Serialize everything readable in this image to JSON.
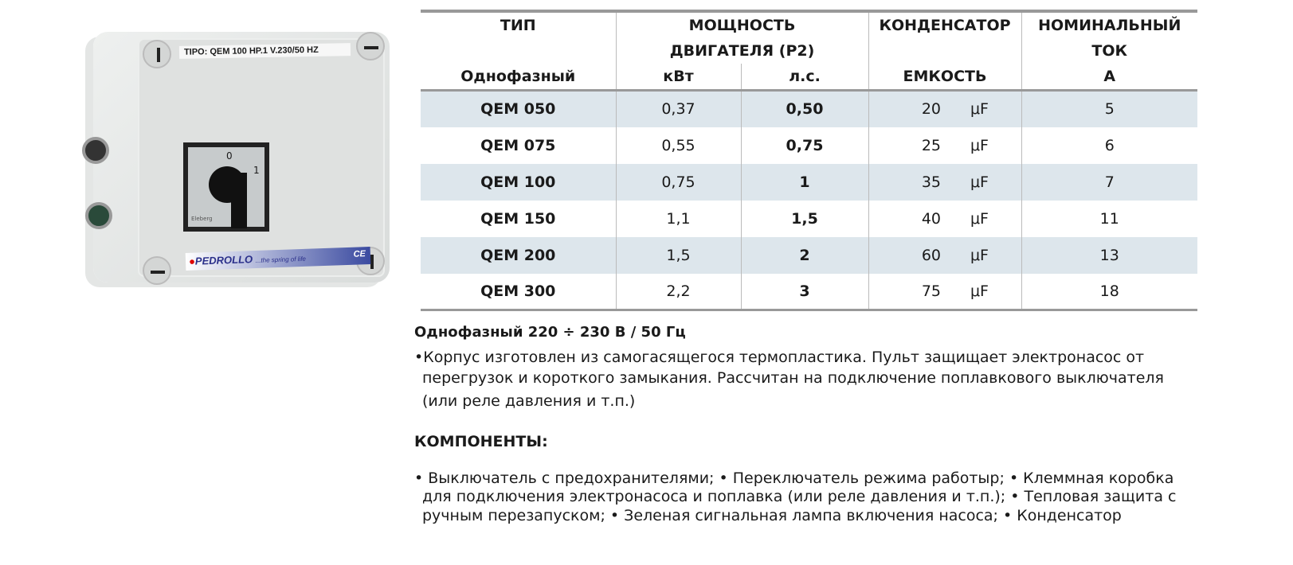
{
  "product_image": {
    "label": "TIPO: QEM 100  HP.1  V.230/50 HZ",
    "brand": "PEDROLLO",
    "slogan": "...the spring of life",
    "ce": "CE",
    "switch_positions": [
      "0",
      "1"
    ],
    "switch_brand": "Eleberg"
  },
  "table": {
    "headers": {
      "type": "ТИП",
      "type_sub": "Однофазный",
      "power": "МОЩНОСТЬ",
      "power2": "ДВИГАТЕЛЯ (P2)",
      "kw": "кВт",
      "hp": "л.с.",
      "cap": "КОНДЕНСАТОР",
      "cap_sub": "ЕМКОСТЬ",
      "cur": "НОМИНАЛЬНЫЙ",
      "cur2": "ТОК",
      "cur_unit": "А"
    },
    "rows": [
      {
        "type": "QEM 050",
        "kw": "0,37",
        "hp": "0,50",
        "cap": "20",
        "unit": "μF",
        "cur": "5"
      },
      {
        "type": "QEM 075",
        "kw": "0,55",
        "hp": "0,75",
        "cap": "25",
        "unit": "μF",
        "cur": "6"
      },
      {
        "type": "QEM 100",
        "kw": "0,75",
        "hp": "1",
        "cap": "35",
        "unit": "μF",
        "cur": "7"
      },
      {
        "type": "QEM 150",
        "kw": "1,1",
        "hp": "1,5",
        "cap": "40",
        "unit": "μF",
        "cur": "11"
      },
      {
        "type": "QEM 200",
        "kw": "1,5",
        "hp": "2",
        "cap": "60",
        "unit": "μF",
        "cur": "13"
      },
      {
        "type": "QEM 300",
        "kw": "2,2",
        "hp": "3",
        "cap": "75",
        "unit": "μF",
        "cur": "18"
      }
    ]
  },
  "description": {
    "heading": "Однофазный 220 ÷ 230 В / 50 Гц",
    "lines": [
      "•Корпус изготовлен из самогасящегося термопластика. Пульт защищает электронасос от",
      "перегрузок и короткого замыкания. Рассчитан на подключение поплавкового выключателя",
      "(или реле давления и т.п.)"
    ]
  },
  "components": {
    "heading": "КОМПОНЕНТЫ:",
    "lines": [
      "• Выключатель с предохранителями;  • Переключатель режима работыр;  • Клеммная коробка",
      "для подключения электронасоса и поплавка  (или реле давления и т.п.);  • Тепловая защита с",
      "ручным перезапуском;  • Зеленая сигнальная лампа включения насоса;  • Конденсатор"
    ]
  }
}
